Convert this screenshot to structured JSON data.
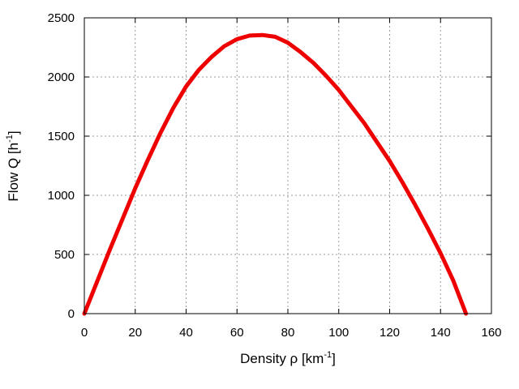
{
  "chart_data": {
    "type": "line",
    "title": "",
    "xlabel": {
      "main": "Density ρ  [km",
      "sup": "-1",
      "end": "]"
    },
    "ylabel": {
      "main": "Flow Q [h",
      "sup": "-1",
      "end": "]"
    },
    "xlim": [
      0,
      160
    ],
    "ylim": [
      0,
      2500
    ],
    "xticks": [
      "0",
      "20",
      "40",
      "60",
      "80",
      "100",
      "120",
      "140",
      "160"
    ],
    "yticks": [
      "0",
      "500",
      "1000",
      "1500",
      "2000",
      "2500"
    ],
    "grid": true,
    "legend": "none",
    "colors": {
      "series": "#ee0000",
      "grid": "#9a9a9a",
      "axes": "#000000"
    },
    "series": [
      {
        "x": [
          0,
          5,
          10,
          15,
          20,
          25,
          30,
          35,
          40,
          45,
          50,
          55,
          60,
          65,
          70,
          75,
          80,
          85,
          90,
          95,
          100,
          105,
          110,
          115,
          120,
          125,
          130,
          135,
          140,
          145,
          150
        ],
        "y": [
          0,
          270,
          540,
          800,
          1060,
          1300,
          1530,
          1740,
          1920,
          2060,
          2170,
          2260,
          2320,
          2350,
          2355,
          2340,
          2290,
          2210,
          2120,
          2010,
          1890,
          1750,
          1610,
          1450,
          1290,
          1110,
          920,
          720,
          510,
          280,
          0
        ]
      }
    ]
  }
}
